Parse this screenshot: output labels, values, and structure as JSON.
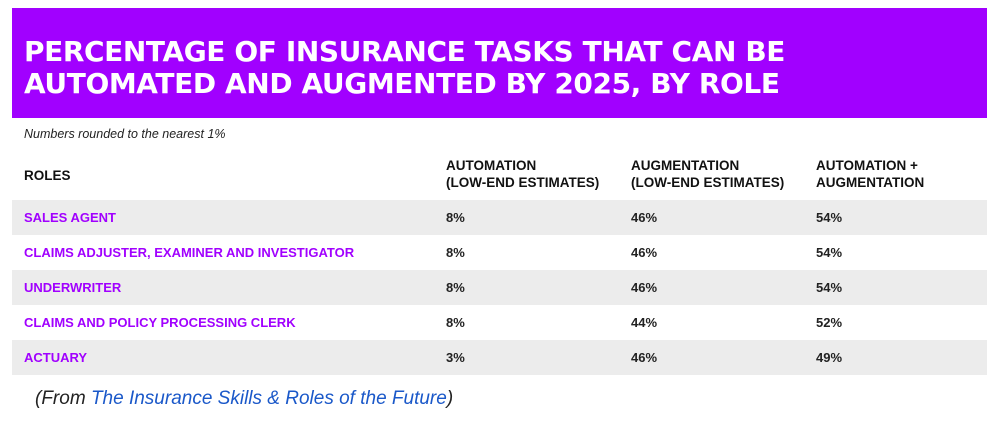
{
  "title": "PERCENTAGE OF INSURANCE TASKS THAT CAN BE\nAUTOMATED AND AUGMENTED BY 2025, BY ROLE",
  "note": "Numbers rounded to the nearest 1%",
  "chart_data": {
    "type": "table",
    "title": "PERCENTAGE OF INSURANCE TASKS THAT CAN BE AUTOMATED AND AUGMENTED BY 2025, BY ROLE",
    "columns": [
      "ROLES",
      "AUTOMATION\n(LOW-END ESTIMATES)",
      "AUGMENTATION\n(LOW-END ESTIMATES)",
      "AUTOMATION +\nAUGMENTATION"
    ],
    "rows": [
      {
        "role": "SALES AGENT",
        "automation": "8%",
        "augmentation": "46%",
        "total": "54%"
      },
      {
        "role": "CLAIMS ADJUSTER, EXAMINER AND INVESTIGATOR",
        "automation": "8%",
        "augmentation": "46%",
        "total": "54%"
      },
      {
        "role": "UNDERWRITER",
        "automation": "8%",
        "augmentation": "46%",
        "total": "54%"
      },
      {
        "role": "CLAIMS AND POLICY PROCESSING CLERK",
        "automation": "8%",
        "augmentation": "44%",
        "total": "52%"
      },
      {
        "role": "ACTUARY",
        "automation": "3%",
        "augmentation": "46%",
        "total": "49%"
      }
    ]
  },
  "source": {
    "prefix": "(From ",
    "link_text": "The Insurance Skills & Roles of the Future",
    "suffix": ")"
  },
  "colors": {
    "accent": "#a100ff",
    "row_shade": "#ececec",
    "link": "#1a58c9"
  }
}
